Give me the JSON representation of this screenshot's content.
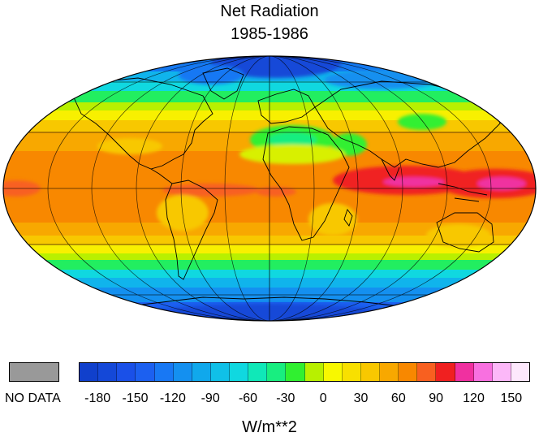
{
  "title": "Net Radiation",
  "subtitle": "1985-1986",
  "map": {
    "projection": "Mollweide",
    "variable": "Net Radiation",
    "units": "W/m**2"
  },
  "legend": {
    "no_data_label": "NO DATA",
    "no_data_color": "#999999",
    "tick_labels": [
      "-180",
      "-150",
      "-120",
      "-90",
      "-60",
      "-30",
      "0",
      "30",
      "60",
      "90",
      "120",
      "150"
    ],
    "tick_values": [
      -180,
      -150,
      -120,
      -90,
      -60,
      -30,
      0,
      30,
      60,
      90,
      120,
      150
    ],
    "bins": [
      {
        "min": -195,
        "max": -180,
        "color": "#1040cc"
      },
      {
        "min": -180,
        "max": -165,
        "color": "#1448d8"
      },
      {
        "min": -165,
        "max": -150,
        "color": "#1a50e8"
      },
      {
        "min": -150,
        "max": -135,
        "color": "#1c60f0"
      },
      {
        "min": -135,
        "max": -120,
        "color": "#1878f4"
      },
      {
        "min": -120,
        "max": -105,
        "color": "#1490f0"
      },
      {
        "min": -105,
        "max": -90,
        "color": "#10a8ec"
      },
      {
        "min": -90,
        "max": -75,
        "color": "#10c0e8"
      },
      {
        "min": -75,
        "max": -60,
        "color": "#10d8e0"
      },
      {
        "min": -60,
        "max": -45,
        "color": "#10e8b8"
      },
      {
        "min": -45,
        "max": -30,
        "color": "#18ee80"
      },
      {
        "min": -30,
        "max": -15,
        "color": "#30f030"
      },
      {
        "min": -15,
        "max": 0,
        "color": "#b8f000"
      },
      {
        "min": 0,
        "max": 15,
        "color": "#f8f800"
      },
      {
        "min": 15,
        "max": 30,
        "color": "#f8e000"
      },
      {
        "min": 30,
        "max": 45,
        "color": "#f8c800"
      },
      {
        "min": 45,
        "max": 60,
        "color": "#f8a800"
      },
      {
        "min": 60,
        "max": 75,
        "color": "#f88800"
      },
      {
        "min": 75,
        "max": 90,
        "color": "#f86020"
      },
      {
        "min": 90,
        "max": 105,
        "color": "#f02020"
      },
      {
        "min": 105,
        "max": 120,
        "color": "#f030a0"
      },
      {
        "min": 120,
        "max": 135,
        "color": "#f870e0"
      },
      {
        "min": 135,
        "max": 150,
        "color": "#fcb8f8"
      },
      {
        "min": 150,
        "max": 165,
        "color": "#fde8fc"
      }
    ],
    "units_label": "W/m**2"
  }
}
